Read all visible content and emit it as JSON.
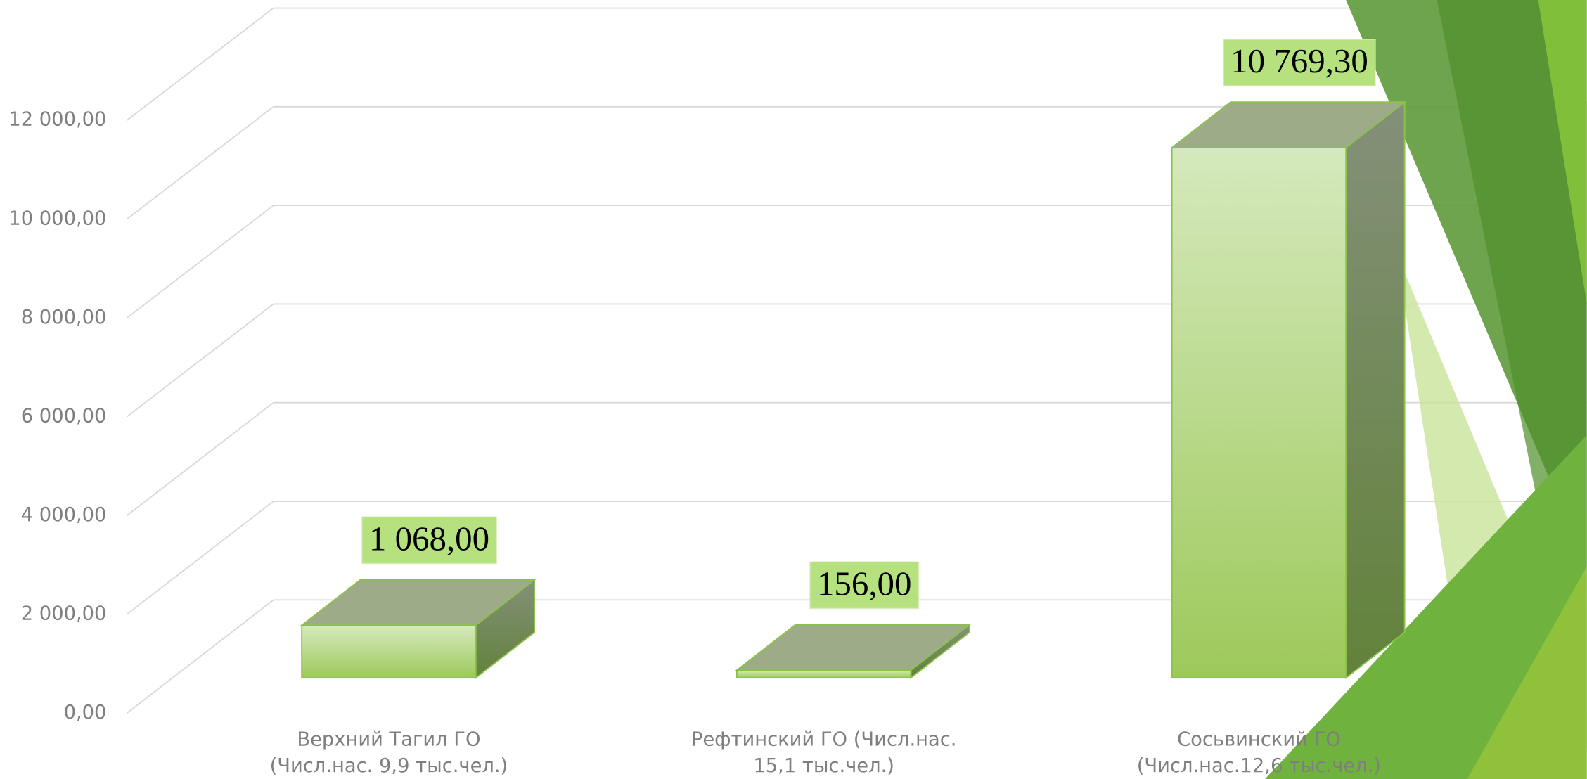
{
  "chart_data": {
    "type": "bar3d",
    "categories": [
      "Верхний Тагил ГО (Числ.нас. 9,9 тыс.чел.)",
      "Рефтинский ГО (Числ.нас. 15,1 тыс.чел.)",
      "Сосьвинский ГО (Числ.нас.12,6 тыс.чел.)"
    ],
    "values": [
      1068,
      156,
      10769.3
    ],
    "value_labels": [
      "1 068,00",
      "156,00",
      "10 769,30"
    ],
    "color": "#9dc95b",
    "ylim": [
      0,
      12000
    ],
    "yticks": [
      {
        "value": 0,
        "label": "0,00"
      },
      {
        "value": 2000,
        "label": "2 000,00"
      },
      {
        "value": 4000,
        "label": "4 000,00"
      },
      {
        "value": 6000,
        "label": "6 000,00"
      },
      {
        "value": 8000,
        "label": "8 000,00"
      },
      {
        "value": 10000,
        "label": "10 000,00"
      },
      {
        "value": 12000,
        "label": "12 000,00"
      }
    ],
    "grid": true
  }
}
